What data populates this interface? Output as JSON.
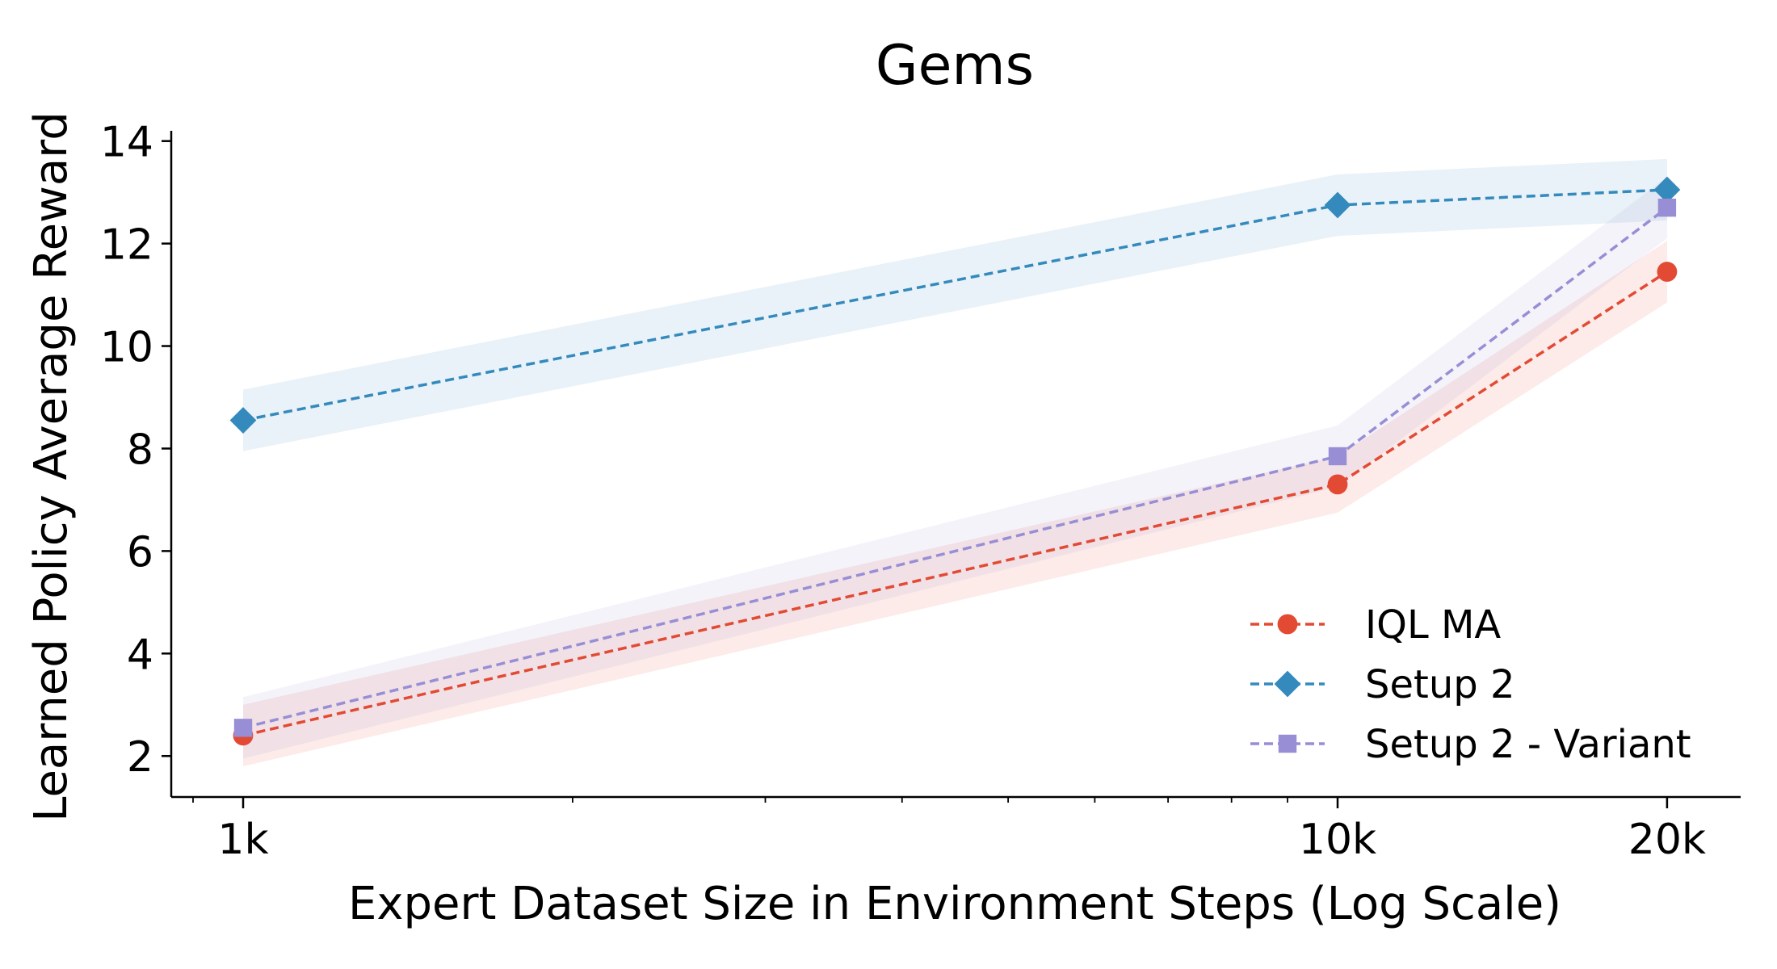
{
  "chart_data": {
    "type": "line",
    "title": "Gems",
    "xlabel": "Expert Dataset Size in Environment Steps (Log Scale)",
    "ylabel": "Learned Policy Average Reward",
    "xscale": "log",
    "x": [
      1000,
      10000,
      20000
    ],
    "xticks": [
      {
        "value": 1000,
        "label": "1k"
      },
      {
        "value": 10000,
        "label": "10k"
      },
      {
        "value": 20000,
        "label": "20k"
      }
    ],
    "yticks": [
      2,
      4,
      6,
      8,
      10,
      12,
      14
    ],
    "ylim": [
      1.2,
      14.2
    ],
    "grid": false,
    "legend_position": "lower-right",
    "series": [
      {
        "name": "IQL MA",
        "color": "#e24a33",
        "marker": "circle",
        "values": [
          2.4,
          7.3,
          11.45
        ],
        "lower": [
          1.8,
          6.75,
          10.85
        ],
        "upper": [
          3.0,
          7.85,
          12.05
        ]
      },
      {
        "name": "Setup 2",
        "color": "#348abd",
        "marker": "diamond",
        "values": [
          8.55,
          12.75,
          13.05
        ],
        "lower": [
          7.95,
          12.15,
          12.45
        ],
        "upper": [
          9.15,
          13.35,
          13.65
        ]
      },
      {
        "name": "Setup 2 - Variant",
        "color": "#988ed5",
        "marker": "square",
        "values": [
          2.55,
          7.85,
          12.7
        ],
        "lower": [
          1.95,
          7.25,
          12.1
        ],
        "upper": [
          3.15,
          8.45,
          13.3
        ]
      }
    ]
  }
}
